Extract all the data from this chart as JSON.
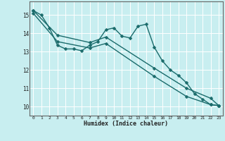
{
  "xlabel": "Humidex (Indice chaleur)",
  "bg_color": "#c8eef0",
  "line_color": "#1a6b6b",
  "grid_color": "#ffffff",
  "xlim": [
    -0.5,
    23.5
  ],
  "ylim": [
    9.5,
    15.75
  ],
  "xticks": [
    0,
    1,
    2,
    3,
    4,
    5,
    6,
    7,
    8,
    9,
    10,
    11,
    12,
    13,
    14,
    15,
    16,
    17,
    18,
    19,
    20,
    21,
    22,
    23
  ],
  "yticks": [
    10,
    11,
    12,
    13,
    14,
    15
  ],
  "line1_x": [
    0,
    1,
    2,
    3,
    4,
    5,
    6,
    7,
    8,
    9,
    10,
    11,
    12,
    13,
    14,
    15,
    16,
    17,
    18,
    19,
    20,
    21,
    22,
    23
  ],
  "line1_y": [
    15.25,
    15.0,
    14.3,
    13.35,
    13.15,
    13.15,
    13.05,
    13.35,
    13.55,
    14.2,
    14.3,
    13.85,
    13.75,
    14.4,
    14.5,
    13.25,
    12.5,
    12.0,
    11.7,
    11.3,
    10.7,
    10.4,
    10.1,
    10.05
  ],
  "line1_markers": [
    0,
    1,
    2,
    3,
    4,
    5,
    6,
    7,
    8,
    9,
    10,
    11,
    12,
    13,
    14,
    15,
    16,
    17,
    18,
    19,
    20,
    21,
    22,
    23
  ],
  "line2_x": [
    0,
    3,
    7,
    9,
    15,
    19,
    22,
    23
  ],
  "line2_y": [
    15.25,
    13.9,
    13.5,
    13.8,
    12.1,
    11.0,
    10.45,
    10.05
  ],
  "line3_x": [
    0,
    3,
    7,
    9,
    15,
    19,
    22,
    23
  ],
  "line3_y": [
    15.1,
    13.55,
    13.2,
    13.45,
    11.65,
    10.55,
    10.1,
    10.05
  ],
  "linewidth": 1.0,
  "marker_size": 2.5
}
